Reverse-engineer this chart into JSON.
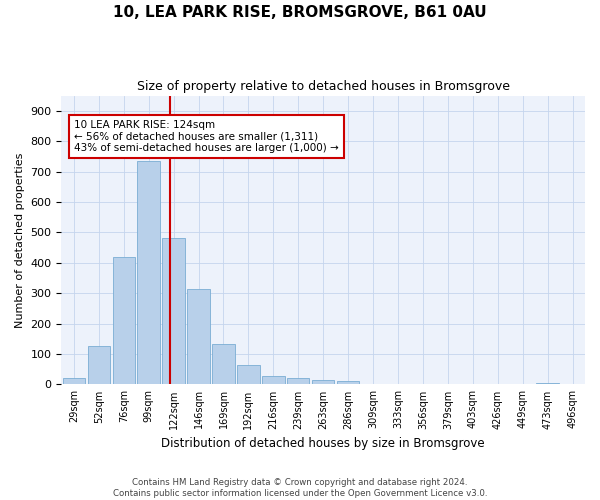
{
  "title": "10, LEA PARK RISE, BROMSGROVE, B61 0AU",
  "subtitle": "Size of property relative to detached houses in Bromsgrove",
  "xlabel": "Distribution of detached houses by size in Bromsgrove",
  "ylabel": "Number of detached properties",
  "bar_color": "#b8d0ea",
  "bar_edge_color": "#7aadd4",
  "background_color": "#edf2fb",
  "grid_color": "#c5d5ed",
  "marker_line_color": "#cc0000",
  "annotation_title": "10 LEA PARK RISE: 124sqm",
  "annotation_line1": "← 56% of detached houses are smaller (1,311)",
  "annotation_line2": "43% of semi-detached houses are larger (1,000) →",
  "footer_line1": "Contains HM Land Registry data © Crown copyright and database right 2024.",
  "footer_line2": "Contains public sector information licensed under the Open Government Licence v3.0.",
  "bin_labels": [
    "29sqm",
    "52sqm",
    "76sqm",
    "99sqm",
    "122sqm",
    "146sqm",
    "169sqm",
    "192sqm",
    "216sqm",
    "239sqm",
    "263sqm",
    "286sqm",
    "309sqm",
    "333sqm",
    "356sqm",
    "379sqm",
    "403sqm",
    "426sqm",
    "449sqm",
    "473sqm",
    "496sqm"
  ],
  "bar_heights": [
    20,
    127,
    420,
    735,
    483,
    315,
    133,
    65,
    28,
    22,
    13,
    10,
    0,
    0,
    0,
    0,
    0,
    0,
    0,
    5,
    0
  ],
  "ylim": [
    0,
    950
  ],
  "yticks": [
    0,
    100,
    200,
    300,
    400,
    500,
    600,
    700,
    800,
    900
  ],
  "marker_bin_index": 3.85,
  "figsize": [
    6.0,
    5.0
  ],
  "dpi": 100
}
